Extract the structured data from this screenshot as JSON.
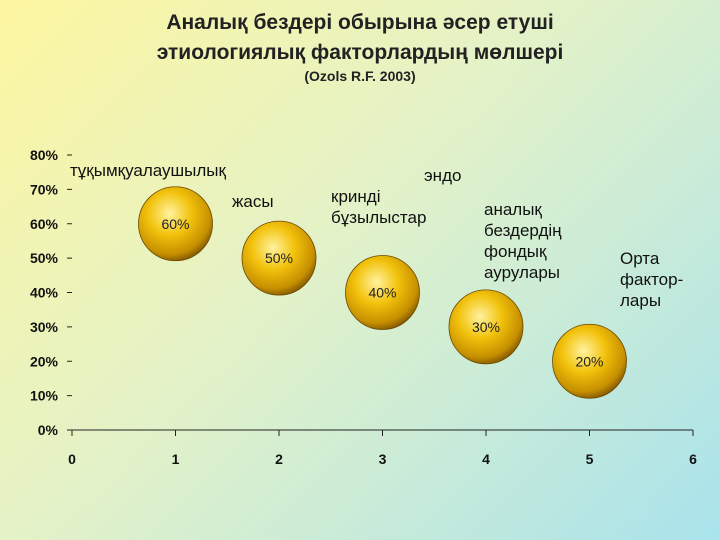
{
  "header": {
    "title_line1": "Аналық бездері обырына әсер етуші",
    "title_line2": "этиологиялық факторлардың мөлшері",
    "subtitle": "(Ozols R.F. 2003)"
  },
  "annotations": {
    "a1_line1": "тұқымқуалаушылық",
    "a1_line2": "жасы",
    "a2_line1": "эндо",
    "a2_line2": "кринді",
    "a2_line3": "бұзылыстар",
    "a3_line1": "аналық",
    "a3_line2": "бездердің",
    "a3_line3": "фондық",
    "a3_line4": "аурулары",
    "a4_line1": "Орта",
    "a4_line2": "фактор-",
    "a4_line3": "лары"
  },
  "chart_data": {
    "type": "scatter",
    "title": "Аналық бездері обырына әсер етуші этиологиялық факторлардың мөлшері",
    "subtitle": "(Ozols R.F. 2003)",
    "xlim": [
      0,
      6
    ],
    "ylim": [
      0,
      80
    ],
    "x_ticks": [
      "0",
      "1",
      "2",
      "3",
      "4",
      "5",
      "6"
    ],
    "y_ticks": [
      "0%",
      "10%",
      "20%",
      "30%",
      "40%",
      "50%",
      "60%",
      "70%",
      "80%"
    ],
    "points": [
      {
        "x": 1,
        "y": 60,
        "label": "60%"
      },
      {
        "x": 2,
        "y": 50,
        "label": "50%"
      },
      {
        "x": 3,
        "y": 40,
        "label": "40%"
      },
      {
        "x": 4,
        "y": 30,
        "label": "30%"
      },
      {
        "x": 5,
        "y": 20,
        "label": "20%"
      }
    ],
    "grid": false,
    "colors": {
      "bubble_light": "#fff3a0",
      "bubble_mid": "#f2c20c",
      "bubble_dark": "#8a5e00"
    }
  }
}
